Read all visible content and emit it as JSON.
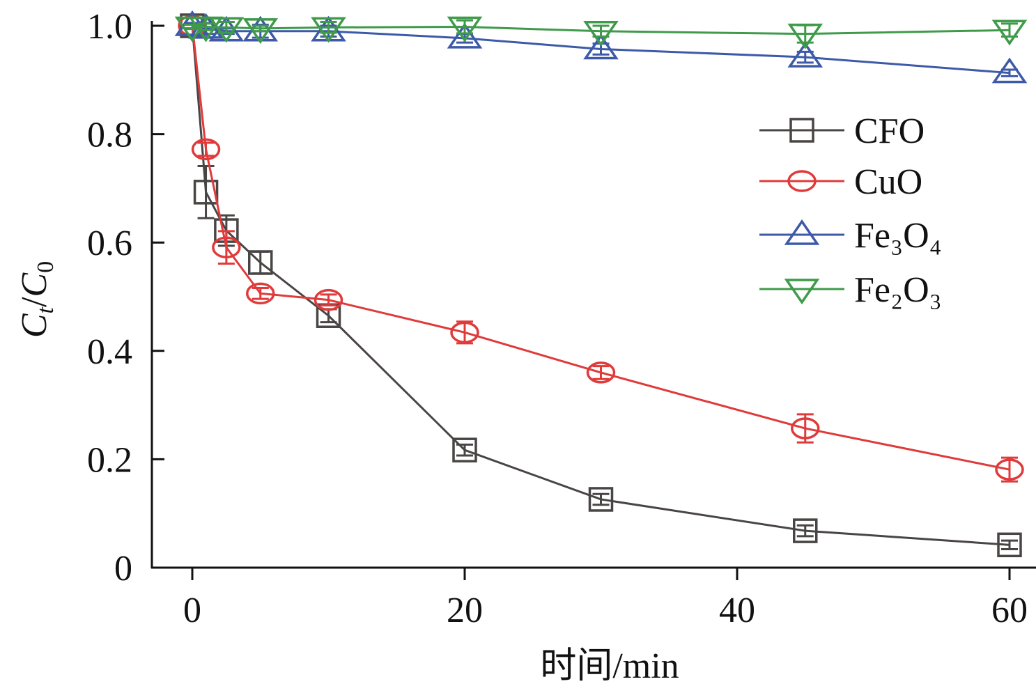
{
  "chart_data": {
    "type": "line",
    "title": "",
    "xlabel": "时间/min",
    "ylabel": {
      "main": "C",
      "sub1": "t",
      "slash": "/",
      "main2": "C",
      "sub2": "0"
    },
    "xlim": [
      -3,
      62
    ],
    "ylim": [
      0,
      1.0
    ],
    "xticks": [
      0,
      20,
      40,
      60
    ],
    "xtick_labels": [
      "0",
      "20",
      "40",
      "60"
    ],
    "yticks": [
      0,
      0.2,
      0.4,
      0.6,
      0.8,
      1.0
    ],
    "ytick_labels": [
      "0",
      "0.2",
      "0.4",
      "0.6",
      "0.8",
      "1.0"
    ],
    "grid": false,
    "legend_position": "top-right",
    "x": [
      0,
      1,
      2.5,
      5,
      10,
      20,
      30,
      45,
      60
    ],
    "series": [
      {
        "name": "CFO",
        "marker": "square",
        "color": "#4a4545",
        "values": [
          1.0,
          0.693,
          0.622,
          0.563,
          0.465,
          0.217,
          0.126,
          0.068,
          0.042
        ],
        "errors": [
          0.005,
          0.048,
          0.028,
          0.02,
          0.012,
          0.01,
          0.01,
          0.01,
          0.008
        ]
      },
      {
        "name": "CuO",
        "marker": "circle",
        "color": "#e03a3a",
        "values": [
          1.0,
          0.772,
          0.591,
          0.506,
          0.494,
          0.434,
          0.36,
          0.257,
          0.181
        ],
        "errors": [
          0.005,
          0.012,
          0.03,
          0.01,
          0.01,
          0.02,
          0.012,
          0.026,
          0.022
        ]
      },
      {
        "name": "Fe₃O₄",
        "marker": "triangle-up",
        "color": "#3d5aa8",
        "values": [
          1.0,
          0.995,
          0.99,
          0.99,
          0.99,
          0.977,
          0.957,
          0.942,
          0.913
        ],
        "errors": [
          0.005,
          0.01,
          0.005,
          0.012,
          0.01,
          0.008,
          0.01,
          0.01,
          0.006
        ]
      },
      {
        "name": "Fe₂O₃",
        "marker": "triangle-down",
        "color": "#3f9a4a",
        "values": [
          0.998,
          0.998,
          0.997,
          0.995,
          0.997,
          0.998,
          0.99,
          0.985,
          0.992
        ],
        "errors": [
          0.004,
          0.006,
          0.01,
          0.005,
          0.01,
          0.012,
          0.01,
          0.016,
          0.012
        ]
      }
    ]
  }
}
